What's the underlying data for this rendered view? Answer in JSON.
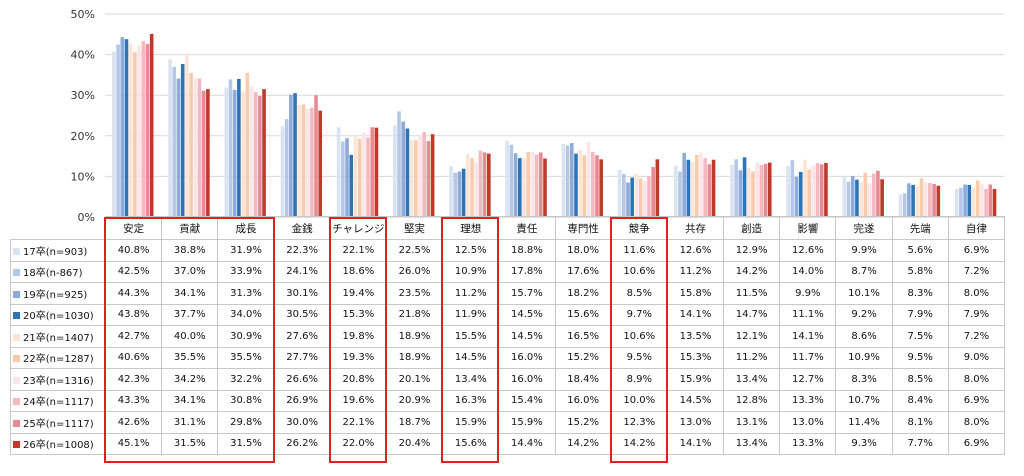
{
  "chart_data": {
    "type": "bar",
    "title": "",
    "xlabel": "",
    "ylabel": "",
    "ylim": [
      0,
      50
    ],
    "yticks": [
      "0%",
      "10%",
      "20%",
      "30%",
      "40%",
      "50%"
    ],
    "grid": true,
    "legend": "table-rows",
    "categories": [
      "安定",
      "貢献",
      "成長",
      "金銭",
      "チャレンジ",
      "堅実",
      "理想",
      "責任",
      "専門性",
      "競争",
      "共存",
      "創造",
      "影響",
      "完遂",
      "先端",
      "自律"
    ],
    "series": [
      {
        "name": "17卒(n=903)",
        "color": "#d9e3f1",
        "values": [
          40.8,
          38.8,
          31.9,
          22.3,
          22.1,
          22.5,
          12.5,
          18.8,
          18.0,
          11.6,
          12.6,
          12.9,
          12.6,
          9.9,
          5.6,
          6.9
        ]
      },
      {
        "name": "18卒(n-867)",
        "color": "#b4c7e7",
        "values": [
          42.5,
          37.0,
          33.9,
          24.1,
          18.6,
          26.0,
          10.9,
          17.8,
          17.6,
          10.6,
          11.2,
          14.2,
          14.0,
          8.7,
          5.8,
          7.2
        ]
      },
      {
        "name": "19卒(n=925)",
        "color": "#8eaadb",
        "values": [
          44.3,
          34.1,
          31.3,
          30.1,
          19.4,
          23.5,
          11.2,
          15.7,
          18.2,
          8.5,
          15.8,
          11.5,
          9.9,
          10.1,
          8.3,
          8.0
        ]
      },
      {
        "name": "20卒(n=1030)",
        "color": "#2e75b6",
        "values": [
          43.8,
          37.7,
          34.0,
          30.5,
          15.3,
          21.8,
          11.9,
          14.5,
          15.6,
          9.7,
          14.1,
          14.7,
          11.1,
          9.2,
          7.9,
          7.9
        ]
      },
      {
        "name": "21卒(n=1407)",
        "color": "#fce4d6",
        "values": [
          42.7,
          40.0,
          30.9,
          27.6,
          19.8,
          18.9,
          15.5,
          14.5,
          16.5,
          10.6,
          13.5,
          12.1,
          14.1,
          8.6,
          7.5,
          7.2
        ]
      },
      {
        "name": "22卒(n=1287)",
        "color": "#f8cbad",
        "values": [
          40.6,
          35.5,
          35.5,
          27.7,
          19.3,
          18.9,
          14.5,
          16.0,
          15.2,
          9.5,
          15.3,
          11.2,
          11.7,
          10.9,
          9.5,
          9.0
        ]
      },
      {
        "name": "23卒(n=1316)",
        "color": "#fbe5e8",
        "values": [
          42.3,
          34.2,
          32.2,
          26.6,
          20.8,
          20.1,
          13.4,
          16.0,
          18.4,
          8.9,
          15.9,
          13.4,
          12.7,
          8.3,
          8.5,
          8.0
        ]
      },
      {
        "name": "24卒(n=1117)",
        "color": "#f4b8bf",
        "values": [
          43.3,
          34.1,
          30.8,
          26.9,
          19.6,
          20.9,
          16.3,
          15.4,
          16.0,
          10.0,
          14.5,
          12.8,
          13.3,
          10.7,
          8.4,
          6.9
        ]
      },
      {
        "name": "25卒(n=1117)",
        "color": "#e88a94",
        "values": [
          42.6,
          31.1,
          29.8,
          30.0,
          22.1,
          18.7,
          15.9,
          15.9,
          15.2,
          12.3,
          13.0,
          13.1,
          13.0,
          11.4,
          8.1,
          8.0
        ]
      },
      {
        "name": "26卒(n=1008)",
        "color": "#c0392b",
        "values": [
          45.1,
          31.5,
          31.5,
          26.2,
          22.0,
          20.4,
          15.6,
          14.4,
          14.2,
          14.2,
          14.1,
          13.4,
          13.3,
          9.3,
          7.7,
          6.9
        ]
      }
    ]
  },
  "highlight_color": "#e02020",
  "grid_color": "#d9d9d9"
}
